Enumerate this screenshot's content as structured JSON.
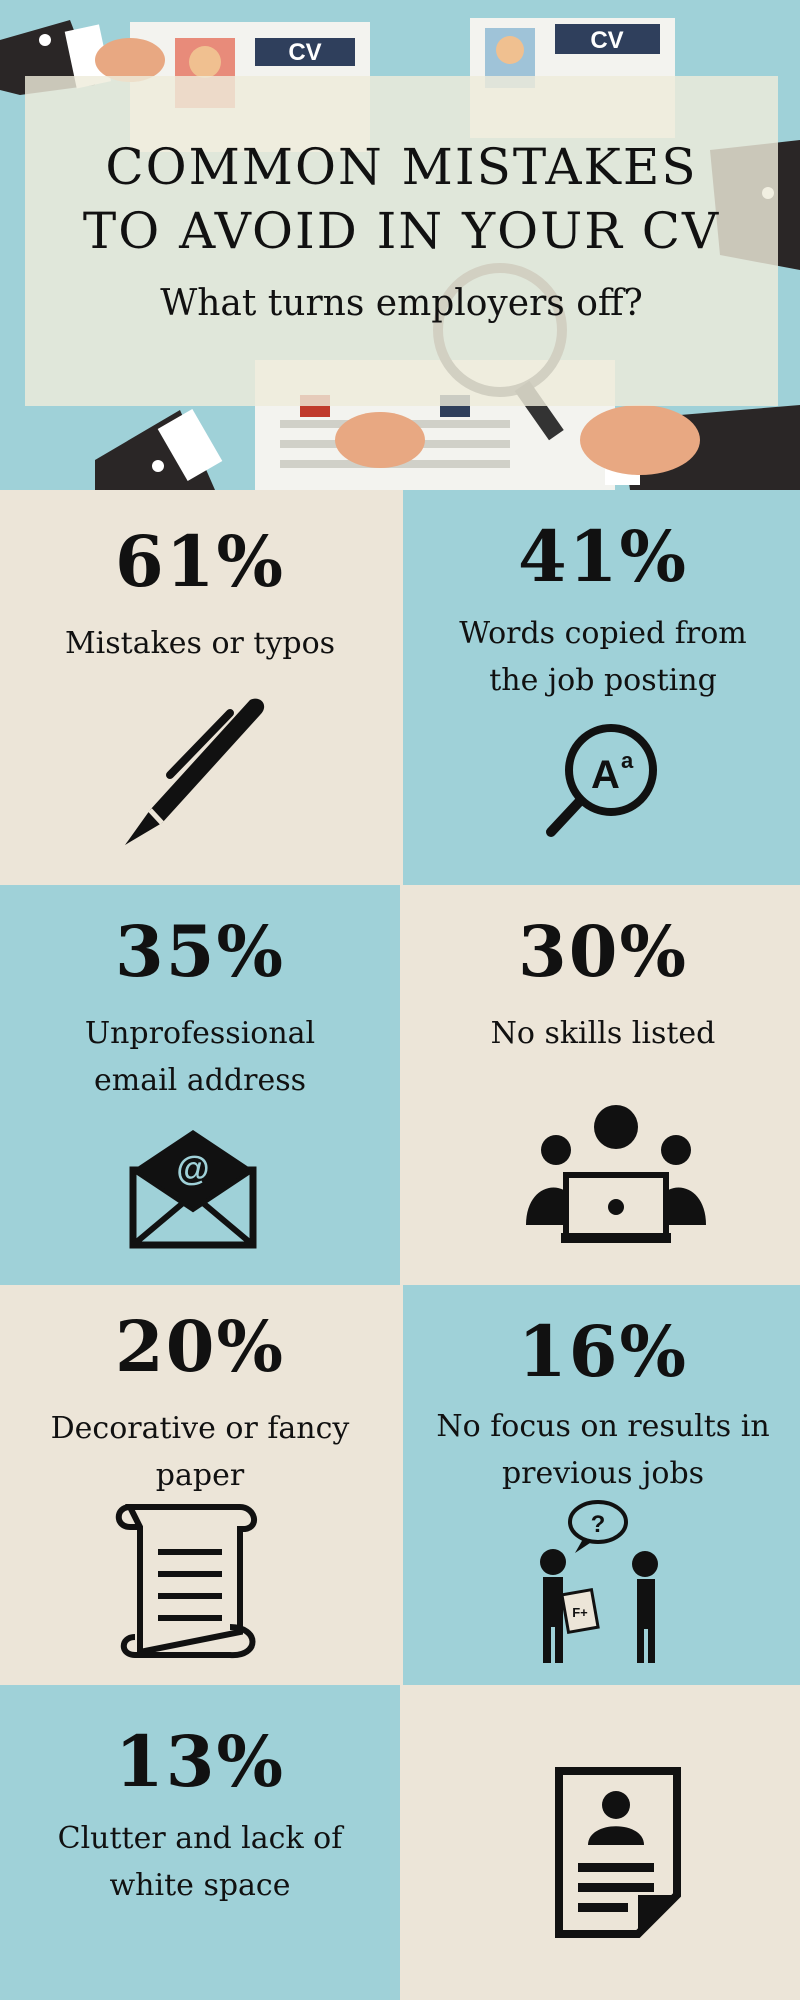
{
  "header": {
    "title_line1": "COMMON MISTAKES",
    "title_line2": "TO AVOID IN YOUR CV",
    "subtitle": "What turns employers off?",
    "art_cv_text": "CV"
  },
  "stats": [
    {
      "percent": "61%",
      "label_line1": "Mistakes or typos",
      "label_line2": "",
      "icon": "pen-icon"
    },
    {
      "percent": "41%",
      "label_line1": "Words copied from",
      "label_line2": "the job posting",
      "icon": "magnifier-text-icon"
    },
    {
      "percent": "35%",
      "label_line1": "Unprofessional",
      "label_line2": "email address",
      "icon": "email-envelope-icon"
    },
    {
      "percent": "30%",
      "label_line1": "No skills listed",
      "label_line2": "",
      "icon": "team-laptop-icon"
    },
    {
      "percent": "20%",
      "label_line1": "Decorative or fancy",
      "label_line2": "paper",
      "icon": "paper-scroll-icon"
    },
    {
      "percent": "16%",
      "label_line1": "No focus on results in",
      "label_line2": "previous jobs",
      "icon": "people-question-icon"
    },
    {
      "percent": "13%",
      "label_line1": "Clutter and lack of",
      "label_line2": "white space",
      "icon": "resume-document-icon"
    }
  ],
  "colors": {
    "teal": "#9fd1d8",
    "beige": "#ece5d8",
    "ink": "#111111"
  }
}
